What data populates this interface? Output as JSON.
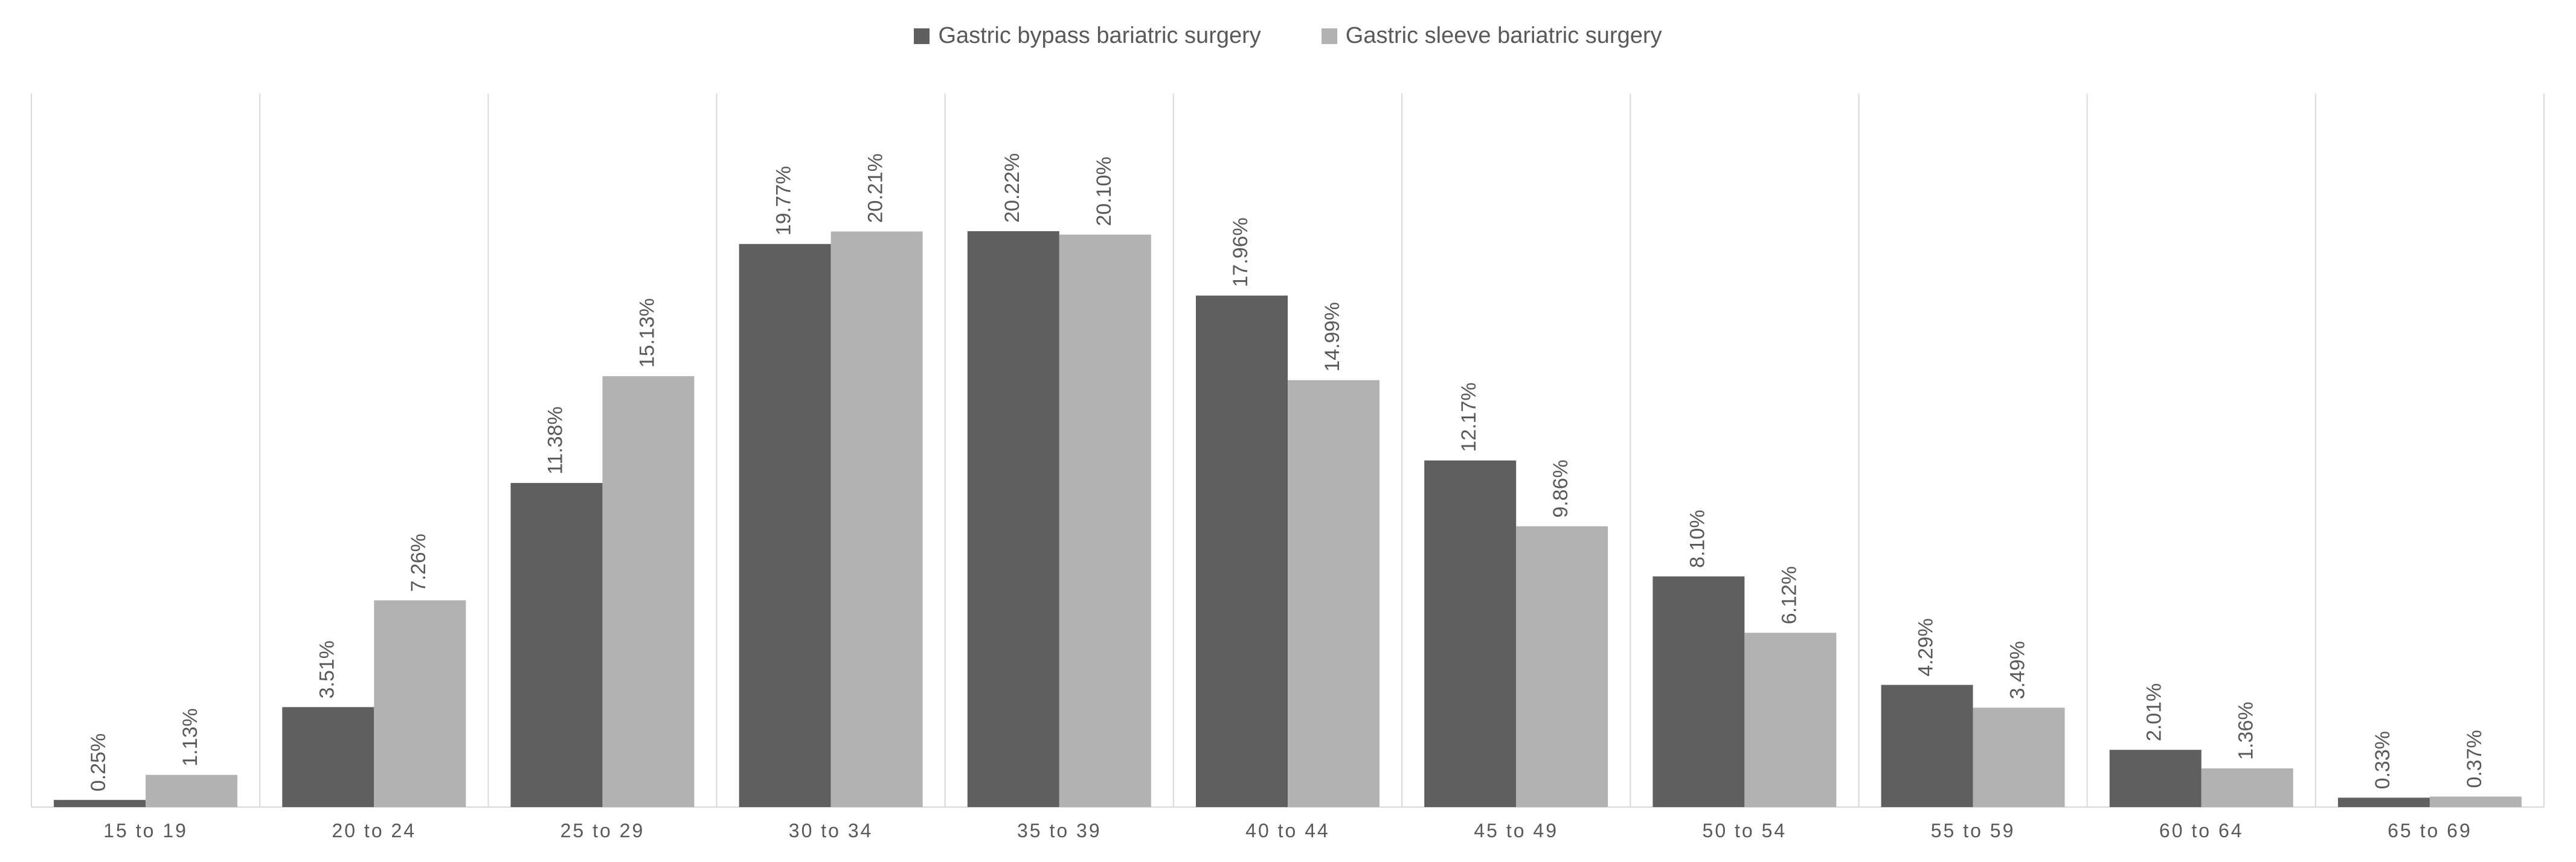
{
  "chart_data": {
    "type": "bar",
    "categories": [
      "15 to 19",
      "20 to 24",
      "25 to 29",
      "30 to 34",
      "35 to 39",
      "40 to 44",
      "45 to 49",
      "50 to 54",
      "55 to 59",
      "60 to 64",
      "65 to 69"
    ],
    "series": [
      {
        "name": "Gastric bypass bariatric surgery",
        "color": "#5f5f5f",
        "values": [
          0.25,
          3.51,
          11.38,
          19.77,
          20.22,
          17.96,
          12.17,
          8.1,
          4.29,
          2.01,
          0.33
        ],
        "labels": [
          "0.25%",
          "3.51%",
          "11.38%",
          "19.77%",
          "20.22%",
          "17.96%",
          "12.17%",
          "8.10%",
          "4.29%",
          "2.01%",
          "0.33%"
        ]
      },
      {
        "name": "Gastric sleeve bariatric surgery",
        "color": "#b2b2b2",
        "values": [
          1.13,
          7.26,
          15.13,
          20.21,
          20.1,
          14.99,
          9.86,
          6.12,
          3.49,
          1.36,
          0.37
        ],
        "labels": [
          "1.13%",
          "7.26%",
          "15.13%",
          "20.21%",
          "20.10%",
          "14.99%",
          "9.86%",
          "6.12%",
          "3.49%",
          "1.36%",
          "0.37%"
        ]
      }
    ],
    "ylim": [
      0,
      25
    ],
    "legend": "top-center",
    "grid": "vertical category separators"
  }
}
